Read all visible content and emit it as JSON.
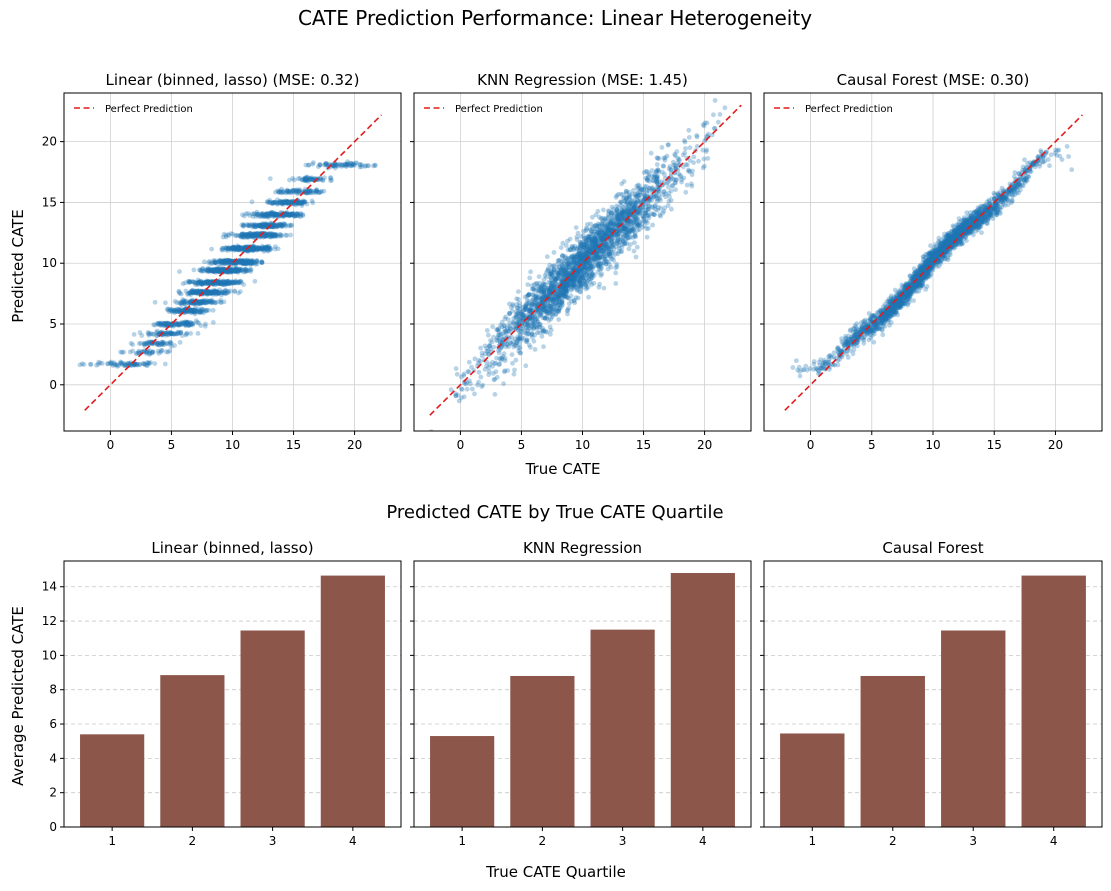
{
  "figure": {
    "title": "CATE Prediction Performance: Linear Heterogeneity",
    "bottom_title": "Predicted CATE by True CATE Quartile",
    "scatter_xlabel": "True CATE",
    "scatter_ylabel": "Predicted CATE",
    "bar_xlabel": "True CATE Quartile",
    "bar_ylabel": "Average Predicted CATE",
    "legend_label": "Perfect Prediction",
    "scatter_color": "#1f77b4",
    "bar_color": "#8c564b",
    "line_color": "#e41a1c"
  },
  "chart_data": [
    {
      "type": "scatter",
      "title": "Linear (binned, lasso) (MSE: 0.32)",
      "xlabel": "",
      "ylabel": "Predicted CATE",
      "xlim": [
        -3.8,
        23.8
      ],
      "ylim": [
        -3.8,
        24.0
      ],
      "xticks": [
        0,
        5,
        10,
        15,
        20
      ],
      "yticks": [
        0,
        5,
        10,
        15,
        20
      ],
      "grid": true,
      "legend": {
        "label": "Perfect Prediction",
        "position": "top-left"
      },
      "perfect_line": [
        [
          -2.1,
          -2.1
        ],
        [
          22.2,
          22.2
        ]
      ],
      "model": "binned",
      "step_levels": [
        1.7,
        2.7,
        3.4,
        4.2,
        5.0,
        6.1,
        6.8,
        7.6,
        8.4,
        9.4,
        10.1,
        11.2,
        12.3,
        13.1,
        14.0,
        15.0,
        15.9,
        16.9,
        18.1
      ]
    },
    {
      "type": "scatter",
      "title": "KNN Regression (MSE: 1.45)",
      "xlabel": "True CATE",
      "ylabel": "",
      "xlim": [
        -3.8,
        23.8
      ],
      "ylim": [
        -3.8,
        24.0
      ],
      "xticks": [
        0,
        5,
        10,
        15,
        20
      ],
      "yticks": [
        0,
        5,
        10,
        15,
        20
      ],
      "grid": true,
      "legend": {
        "label": "Perfect Prediction",
        "position": "top-left"
      },
      "perfect_line": [
        [
          -2.5,
          -2.5
        ],
        [
          23.0,
          23.0
        ]
      ],
      "model": "noisy",
      "noise_sd": 1.2
    },
    {
      "type": "scatter",
      "title": "Causal Forest (MSE: 0.30)",
      "xlabel": "",
      "ylabel": "",
      "xlim": [
        -3.8,
        23.8
      ],
      "ylim": [
        -3.8,
        24.0
      ],
      "xticks": [
        0,
        5,
        10,
        15,
        20
      ],
      "yticks": [
        0,
        5,
        10,
        15,
        20
      ],
      "grid": true,
      "legend": {
        "label": "Perfect Prediction",
        "position": "top-left"
      },
      "perfect_line": [
        [
          -2.1,
          -2.1
        ],
        [
          22.2,
          22.2
        ]
      ],
      "model": "smooth",
      "noise_sd": 0.45
    },
    {
      "type": "bar",
      "title": "Linear (binned, lasso)",
      "categories": [
        "1",
        "2",
        "3",
        "4"
      ],
      "values": [
        5.4,
        8.85,
        11.45,
        14.65
      ],
      "ylim": [
        0,
        15.5
      ],
      "yticks": [
        0,
        2,
        4,
        6,
        8,
        10,
        12,
        14
      ],
      "ylabel": "Average Predicted CATE",
      "xlabel": ""
    },
    {
      "type": "bar",
      "title": "KNN Regression",
      "categories": [
        "1",
        "2",
        "3",
        "4"
      ],
      "values": [
        5.3,
        8.8,
        11.5,
        14.8
      ],
      "ylim": [
        0,
        15.5
      ],
      "yticks": [
        0,
        2,
        4,
        6,
        8,
        10,
        12,
        14
      ],
      "ylabel": "",
      "xlabel": "True CATE Quartile"
    },
    {
      "type": "bar",
      "title": "Causal Forest",
      "categories": [
        "1",
        "2",
        "3",
        "4"
      ],
      "values": [
        5.45,
        8.8,
        11.45,
        14.65
      ],
      "ylim": [
        0,
        15.5
      ],
      "yticks": [
        0,
        2,
        4,
        6,
        8,
        10,
        12,
        14
      ],
      "ylabel": "",
      "xlabel": ""
    }
  ]
}
